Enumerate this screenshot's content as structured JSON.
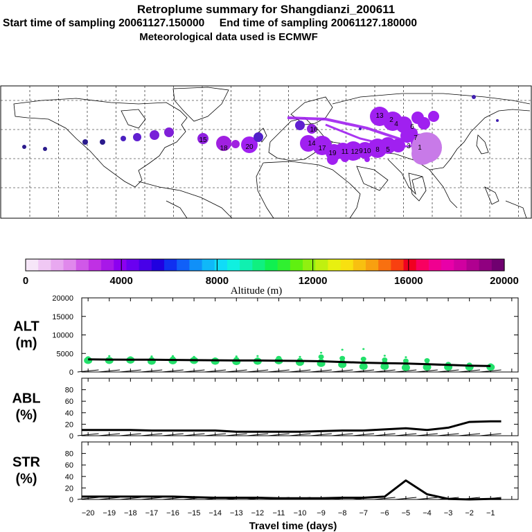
{
  "header": {
    "title": "Retroplume summary for Shangdianzi_200611",
    "start_label": "Start time of sampling 20061127.150000",
    "end_label": "End time of sampling 20061127.180000",
    "met_label": "Meteorological data used is ECMWF"
  },
  "colors": {
    "axis": "#000000",
    "marker": "#22e06a",
    "plume": "#a020f0",
    "plume_light": "#c87ae8",
    "plume_dark": "#2a1a8c",
    "grid": "#000000"
  },
  "chart_data": [
    {
      "type": "map",
      "name": "retroplume-map",
      "description_labels": [
        "1",
        "2",
        "3",
        "4",
        "5",
        "6",
        "7",
        "8",
        "9",
        "10",
        "11",
        "12",
        "13",
        "14",
        "15",
        "16",
        "17",
        "18",
        "19",
        "20"
      ]
    },
    {
      "type": "colorbar",
      "name": "altitude-colorbar",
      "xlabel": "Altitude (m)",
      "range": [
        0,
        20000
      ],
      "tick_labels": [
        "0",
        "4000",
        "8000",
        "12000",
        "16000",
        "20000"
      ],
      "colors": [
        "#f6e6f8",
        "#f0c8f4",
        "#e8a8f0",
        "#e088ec",
        "#d058e8",
        "#c030e4",
        "#a818e8",
        "#8c00f0",
        "#6a00f0",
        "#4800e8",
        "#2000e0",
        "#1030f0",
        "#1060f8",
        "#1090f8",
        "#10b8f8",
        "#10dcf8",
        "#10f0e0",
        "#10f0b0",
        "#10f080",
        "#10f050",
        "#30f030",
        "#60f010",
        "#90f010",
        "#c0f010",
        "#e8f010",
        "#f8e010",
        "#f8c010",
        "#f8a010",
        "#f87010",
        "#f84010",
        "#f00020",
        "#f80060",
        "#f00090",
        "#e800a8",
        "#d000a0",
        "#b00090",
        "#900080",
        "#700070"
      ]
    },
    {
      "type": "scatter",
      "name": "altitude-panel",
      "ylabel": "ALT\n(m)",
      "ylabel_line1": "ALT",
      "ylabel_line2": "(m)",
      "ylim": [
        0,
        20000
      ],
      "yticks": [
        "0",
        "5000",
        "10000",
        "15000",
        "20000"
      ],
      "x": [
        -20,
        -19,
        -18,
        -17,
        -16,
        -15,
        -14,
        -13,
        -12,
        -11,
        -10,
        -9,
        -8,
        -7,
        -6,
        -5,
        -4,
        -3,
        -2,
        -1
      ],
      "mean_altitude": [
        3400,
        3350,
        3300,
        3300,
        3250,
        3200,
        3150,
        3100,
        3100,
        3050,
        3000,
        2900,
        2700,
        2500,
        2400,
        2300,
        2100,
        1900,
        1700,
        1600
      ],
      "clusters": [
        [
          3100,
          3600,
          4000
        ],
        [
          3100,
          3400,
          4300
        ],
        [
          3200,
          3600
        ],
        [
          2900,
          3400,
          4200
        ],
        [
          3000,
          3600,
          4300
        ],
        [
          3100,
          3500,
          4100
        ],
        [
          2900,
          3300
        ],
        [
          2800,
          3400,
          4200
        ],
        [
          2900,
          3300,
          4300
        ],
        [
          3000,
          3700
        ],
        [
          2600,
          3200,
          4100
        ],
        [
          2300,
          3000,
          4100,
          5200
        ],
        [
          2000,
          2800,
          3700,
          6000
        ],
        [
          1500,
          2400,
          3500,
          6200
        ],
        [
          1500,
          2500,
          3300,
          4400
        ],
        [
          1200,
          2200,
          3000,
          4000
        ],
        [
          1300,
          2000,
          3100
        ],
        [
          1300,
          2100
        ],
        [
          1300,
          1900
        ],
        [
          1300,
          1700
        ]
      ]
    },
    {
      "type": "line",
      "name": "abl-panel",
      "ylabel_line1": "ABL",
      "ylabel_line2": "(%)",
      "ylim": [
        0,
        100
      ],
      "yticks": [
        "0",
        "20",
        "40",
        "60",
        "80"
      ],
      "x": [
        -20.3,
        -19,
        -18,
        -17,
        -16,
        -15,
        -14,
        -13,
        -12,
        -11,
        -10,
        -9,
        -8,
        -7,
        -6,
        -5,
        -4,
        -3,
        -2,
        -1,
        -0.5
      ],
      "values": [
        10,
        10,
        10,
        9,
        9,
        9,
        9,
        7,
        7,
        7,
        7,
        8,
        9,
        9,
        11,
        13,
        10,
        14,
        24,
        25,
        25
      ]
    },
    {
      "type": "line",
      "name": "str-panel",
      "ylabel_line1": "STR",
      "ylabel_line2": "(%)",
      "ylim": [
        0,
        100
      ],
      "yticks": [
        "0",
        "20",
        "40",
        "60",
        "80"
      ],
      "x": [
        -20.3,
        -19,
        -18,
        -17,
        -16,
        -15,
        -14,
        -13,
        -12,
        -11,
        -10,
        -9,
        -8,
        -7,
        -6,
        -5,
        -4,
        -3,
        -2,
        -1,
        -0.5
      ],
      "values": [
        5,
        5,
        5,
        5,
        5,
        4,
        3,
        3,
        3,
        2,
        2,
        2,
        3,
        3,
        5,
        33,
        9,
        1,
        0,
        1,
        1
      ],
      "xlabel": "Travel time (days)",
      "xticks": [
        "−20",
        "−19",
        "−18",
        "−17",
        "−16",
        "−15",
        "−14",
        "−13",
        "−12",
        "−11",
        "−10",
        "−9",
        "−8",
        "−7",
        "−6",
        "−5",
        "−4",
        "−3",
        "−2",
        "−1"
      ]
    }
  ]
}
